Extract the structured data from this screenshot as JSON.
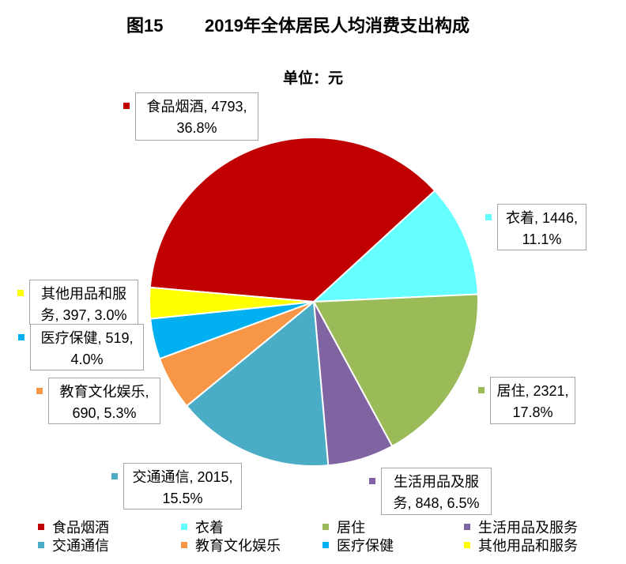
{
  "chart_data": {
    "type": "pie",
    "figure_label": "图15",
    "title": "2019年全体居民人均消费支出构成",
    "unit_label": "单位：元",
    "categories": [
      "食品烟酒",
      "衣着",
      "居住",
      "生活用品及服务",
      "交通通信",
      "教育文化娱乐",
      "医疗保健",
      "其他用品和服务"
    ],
    "values": [
      4793,
      1446,
      2321,
      848,
      2015,
      690,
      519,
      397
    ],
    "percentages": [
      36.8,
      11.1,
      17.8,
      6.5,
      15.5,
      5.3,
      4.0,
      3.0
    ],
    "colors": [
      "#C00000",
      "#66FFFF",
      "#9BBB59",
      "#8064A2",
      "#4BACC6",
      "#F79646",
      "#00B0F0",
      "#FFFF00"
    ],
    "data_labels": [
      [
        "食品烟酒, 4793,",
        "36.8%"
      ],
      [
        "衣着, 1446,",
        "11.1%"
      ],
      [
        "居住, 2321,",
        "17.8%"
      ],
      [
        "生活用品及服",
        "务, 848, 6.5%"
      ],
      [
        "交通通信, 2015,",
        "15.5%"
      ],
      [
        "教育文化娱乐,",
        "690, 5.3%"
      ],
      [
        "医疗保健, 519,",
        "4.0%"
      ],
      [
        "其他用品和服",
        "务, 397, 3.0%"
      ]
    ],
    "legend": {
      "position": "bottom"
    }
  }
}
